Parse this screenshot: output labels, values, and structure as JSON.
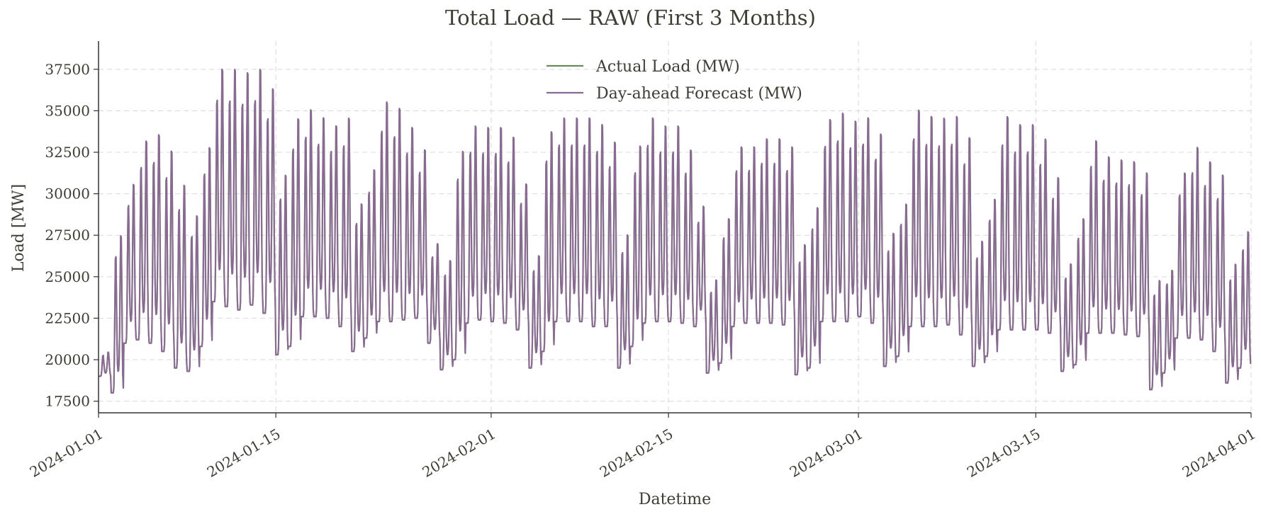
{
  "chart_data": {
    "type": "line",
    "title": "Total Load — RAW (First 3 Months)",
    "xlabel": "Datetime",
    "ylabel": "Load [MW]",
    "xlim": [
      "2024-01-01",
      "2024-04-01"
    ],
    "ylim": [
      16800,
      39200
    ],
    "x_ticks": [
      "2024-01-01",
      "2024-01-15",
      "2024-02-01",
      "2024-02-15",
      "2024-03-01",
      "2024-03-15",
      "2024-04-01"
    ],
    "y_ticks": [
      17500,
      20000,
      22500,
      25000,
      27500,
      30000,
      32500,
      35000,
      37500
    ],
    "grid": true,
    "legend_position": "top-center",
    "colors": {
      "actual": "#6a8a5f",
      "forecast": "#8a6a94",
      "axis": "#333333",
      "grid": "#d9d9d9"
    },
    "x_unit": "date",
    "series": [
      {
        "name": "Actual Load (MW)",
        "daily_min": [
          19000,
          18000,
          21000,
          21200,
          21000,
          20500,
          19500,
          19300,
          20800,
          23500,
          23200,
          23000,
          23300,
          22800,
          20300,
          20800,
          22600,
          22600,
          22500,
          22000,
          20500,
          21300,
          22300,
          22300,
          22400,
          22500,
          21000,
          19400,
          20000,
          22200,
          22400,
          22300,
          22200,
          21800,
          19500,
          20500,
          22300,
          22300,
          22300,
          22000,
          22000,
          19500,
          20800,
          22200,
          22300,
          22300,
          22200,
          22000,
          19200,
          19800,
          22000,
          22200,
          22200,
          22200,
          22100,
          19100,
          19500,
          22300,
          22300,
          22300,
          22600,
          22200,
          19600,
          20200,
          22000,
          22000,
          22000,
          22100,
          21500,
          19600,
          20200,
          21800,
          21800,
          21800,
          21800,
          21600,
          19300,
          19700,
          21600,
          21600,
          21600,
          21500,
          21400,
          18200,
          19200,
          21300,
          21300,
          21200,
          20500,
          18600,
          19500
        ],
        "daily_max": [
          20500,
          27800,
          30900,
          33600,
          34000,
          33000,
          30900,
          29000,
          33200,
          38000,
          38000,
          37800,
          38000,
          36800,
          31500,
          35000,
          35500,
          35000,
          34500,
          35000,
          29700,
          31800,
          36000,
          35600,
          34400,
          33000,
          27200,
          26200,
          33000,
          34500,
          34400,
          34400,
          33800,
          30900,
          26500,
          34200,
          35000,
          35000,
          35000,
          34600,
          33500,
          27800,
          33300,
          35000,
          34500,
          34500,
          33000,
          29500,
          25000,
          28800,
          33200,
          33200,
          33700,
          33700,
          33200,
          27200,
          29500,
          34900,
          35300,
          34800,
          35000,
          34000,
          27900,
          29700,
          35500,
          35100,
          35000,
          35100,
          33800,
          27400,
          30000,
          35100,
          34600,
          34600,
          33700,
          31300,
          26000,
          28800,
          33600,
          32600,
          32400,
          32300,
          31600,
          25000,
          25600,
          31600,
          33200,
          32300,
          31500,
          26000,
          28000
        ]
      },
      {
        "name": "Day-ahead Forecast (MW)",
        "daily_min": [
          19000,
          18000,
          21000,
          21200,
          21000,
          20500,
          19500,
          19300,
          20800,
          23500,
          23200,
          23000,
          23300,
          22800,
          20300,
          20800,
          22600,
          22600,
          22500,
          22000,
          20500,
          21300,
          22300,
          22300,
          22400,
          22500,
          21000,
          19400,
          20000,
          22200,
          22400,
          22300,
          22200,
          21800,
          19500,
          20500,
          22300,
          22300,
          22300,
          22000,
          22000,
          19500,
          20800,
          22200,
          22300,
          22300,
          22200,
          22000,
          19200,
          19800,
          22000,
          22200,
          22200,
          22200,
          22100,
          19100,
          19500,
          22300,
          22300,
          22300,
          22600,
          22200,
          19600,
          20200,
          22000,
          22000,
          22000,
          22100,
          21500,
          19600,
          20200,
          21800,
          21800,
          21800,
          21800,
          21600,
          19300,
          19700,
          21600,
          21600,
          21600,
          21500,
          21400,
          18200,
          19200,
          21300,
          21300,
          21200,
          20500,
          18600,
          19500
        ],
        "daily_max": [
          20500,
          27800,
          30900,
          33600,
          34000,
          33000,
          30900,
          29000,
          33200,
          38000,
          38000,
          37800,
          38000,
          36800,
          31500,
          35000,
          35500,
          35000,
          34500,
          35000,
          29700,
          31800,
          36000,
          35600,
          34400,
          33000,
          27200,
          26200,
          33000,
          34500,
          34400,
          34400,
          33800,
          30900,
          26500,
          34200,
          35000,
          35000,
          35000,
          34600,
          33500,
          27800,
          33300,
          35000,
          34500,
          34500,
          33000,
          29500,
          25000,
          28800,
          33200,
          33200,
          33700,
          33700,
          33200,
          27200,
          29500,
          34900,
          35300,
          34800,
          35000,
          34000,
          27900,
          29700,
          35500,
          35100,
          35000,
          35100,
          33800,
          27400,
          30000,
          35100,
          34600,
          34600,
          33700,
          31300,
          26000,
          28800,
          33600,
          32600,
          32400,
          32300,
          31600,
          25000,
          25600,
          31600,
          33200,
          32300,
          31500,
          26000,
          28000
        ]
      }
    ]
  }
}
